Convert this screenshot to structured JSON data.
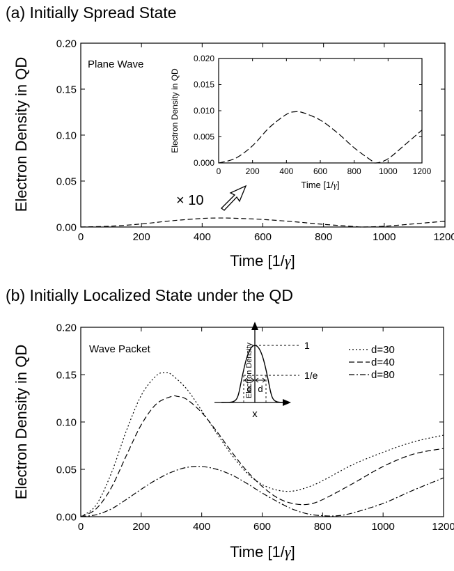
{
  "chart_data": [
    {
      "panel_label": "(a) Initially Spread State",
      "type": "line",
      "xlabel_text": "Time [1/",
      "xlabel_symbol": "γ",
      "xlabel_close": "]",
      "ylabel": "Electron Density in QD",
      "xlim": [
        0,
        1200
      ],
      "ylim": [
        0,
        0.2
      ],
      "xticks": [
        0,
        200,
        400,
        600,
        800,
        1000,
        1200
      ],
      "yticks": [
        "0.00",
        "0.05",
        "0.10",
        "0.15",
        "0.20"
      ],
      "annotation": "Plane Wave",
      "magnifier_label": "× 10",
      "series": [
        {
          "style": "dashed",
          "x": [
            0,
            100,
            200,
            300,
            400,
            450,
            500,
            600,
            700,
            800,
            900,
            930,
            1000,
            1100,
            1200
          ],
          "y": [
            0.0,
            0.0009,
            0.0033,
            0.0068,
            0.0093,
            0.0098,
            0.0096,
            0.0082,
            0.0058,
            0.0029,
            0.0005,
            0.0,
            0.0008,
            0.0035,
            0.0063
          ]
        }
      ],
      "inset": {
        "type": "line",
        "xlabel_text": "Time [1/",
        "xlabel_symbol": "γ",
        "xlabel_close": "]",
        "ylabel": "Electron Density in QD",
        "xlim": [
          0,
          1200
        ],
        "ylim": [
          0,
          0.02
        ],
        "xticks": [
          0,
          200,
          400,
          600,
          800,
          1000,
          1200
        ],
        "yticks": [
          "0.000",
          "0.005",
          "0.010",
          "0.015",
          "0.020"
        ]
      }
    },
    {
      "panel_label": "(b) Initially Localized State under the QD",
      "type": "line",
      "xlabel_text": "Time [1/",
      "xlabel_symbol": "γ",
      "xlabel_close": "]",
      "ylabel": "Electron Density in QD",
      "xlim": [
        0,
        1200
      ],
      "ylim": [
        0,
        0.2
      ],
      "xticks": [
        0,
        200,
        400,
        600,
        800,
        1000,
        1200
      ],
      "yticks": [
        "0.00",
        "0.05",
        "0.10",
        "0.15",
        "0.20"
      ],
      "annotation": "Wave Packet",
      "legend_position": "top-right",
      "series": [
        {
          "name": "d=30",
          "style": "dotted",
          "x": [
            0,
            50,
            100,
            150,
            200,
            250,
            280,
            300,
            350,
            400,
            450,
            500,
            550,
            600,
            650,
            700,
            750,
            800,
            900,
            1000,
            1100,
            1200
          ],
          "y": [
            0.0,
            0.012,
            0.045,
            0.09,
            0.128,
            0.149,
            0.152,
            0.15,
            0.135,
            0.112,
            0.088,
            0.065,
            0.046,
            0.034,
            0.028,
            0.027,
            0.031,
            0.038,
            0.055,
            0.068,
            0.079,
            0.086
          ]
        },
        {
          "name": "d=40",
          "style": "dashed",
          "x": [
            0,
            50,
            100,
            150,
            200,
            250,
            300,
            320,
            350,
            400,
            450,
            500,
            550,
            600,
            650,
            700,
            750,
            800,
            900,
            1000,
            1100,
            1200
          ],
          "y": [
            0.0,
            0.008,
            0.03,
            0.064,
            0.097,
            0.119,
            0.127,
            0.127,
            0.124,
            0.11,
            0.09,
            0.068,
            0.048,
            0.032,
            0.02,
            0.014,
            0.013,
            0.018,
            0.035,
            0.053,
            0.066,
            0.072
          ]
        },
        {
          "name": "d=80",
          "style": "dashdot",
          "x": [
            0,
            50,
            100,
            150,
            200,
            250,
            300,
            350,
            400,
            450,
            500,
            550,
            600,
            650,
            700,
            750,
            800,
            850,
            900,
            1000,
            1100,
            1200
          ],
          "y": [
            0.0,
            0.002,
            0.008,
            0.018,
            0.029,
            0.039,
            0.047,
            0.052,
            0.053,
            0.05,
            0.044,
            0.035,
            0.025,
            0.016,
            0.008,
            0.003,
            0.001,
            0.001,
            0.004,
            0.014,
            0.028,
            0.041
          ]
        }
      ],
      "inset_schematic": {
        "ylabel": "Electron Density",
        "xlabel": "x",
        "peak_label": "1",
        "width_label": "1/e",
        "half_width_label": "d"
      }
    }
  ]
}
